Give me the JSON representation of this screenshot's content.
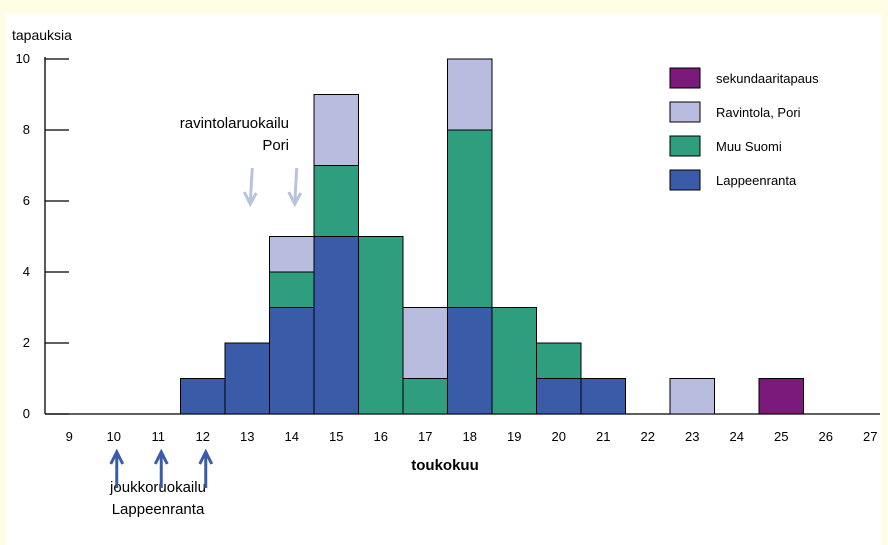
{
  "chart_data": {
    "type": "bar",
    "stacked": true,
    "ylabel": "tapauksia",
    "xlabel": "toukokuu",
    "ylim": [
      0,
      10
    ],
    "yticks": [
      0,
      2,
      4,
      6,
      8,
      10
    ],
    "categories": [
      "9",
      "10",
      "11",
      "12",
      "13",
      "14",
      "15",
      "16",
      "17",
      "18",
      "19",
      "20",
      "21",
      "22",
      "23",
      "24",
      "25",
      "26",
      "27"
    ],
    "series": [
      {
        "name": "Lappeenranta",
        "color": "#3a5ca8",
        "values": [
          0,
          0,
          0,
          1,
          2,
          3,
          5,
          0,
          0,
          3,
          0,
          1,
          1,
          0,
          0,
          0,
          0,
          0,
          0
        ]
      },
      {
        "name": "Muu Suomi",
        "color": "#2e9e7e",
        "values": [
          0,
          0,
          0,
          0,
          0,
          1,
          2,
          5,
          1,
          5,
          3,
          1,
          0,
          0,
          0,
          0,
          0,
          0,
          0
        ]
      },
      {
        "name": "Ravintola, Pori",
        "color": "#b8bcdf",
        "values": [
          0,
          0,
          0,
          0,
          0,
          1,
          2,
          0,
          2,
          2,
          0,
          0,
          0,
          0,
          1,
          0,
          0,
          0,
          0
        ]
      },
      {
        "name": "sekundaaritapaus",
        "color": "#7b1a7b",
        "values": [
          0,
          0,
          0,
          0,
          0,
          0,
          0,
          0,
          0,
          0,
          0,
          0,
          0,
          0,
          0,
          0,
          1,
          0,
          0
        ]
      }
    ],
    "legend_order": [
      "sekundaaritapaus",
      "Ravintola, Pori",
      "Muu Suomi",
      "Lappeenranta"
    ],
    "annotations": [
      {
        "lines": [
          "ravintolaruokailu",
          "Pori"
        ],
        "arrow_color": "#b8c4dc",
        "direction": "down",
        "days": [
          "13",
          "14"
        ]
      },
      {
        "lines": [
          "joukkoruokailu",
          "Lappeenranta"
        ],
        "arrow_color": "#3a5ca8",
        "direction": "up",
        "days": [
          "10",
          "11",
          "12"
        ]
      }
    ]
  }
}
